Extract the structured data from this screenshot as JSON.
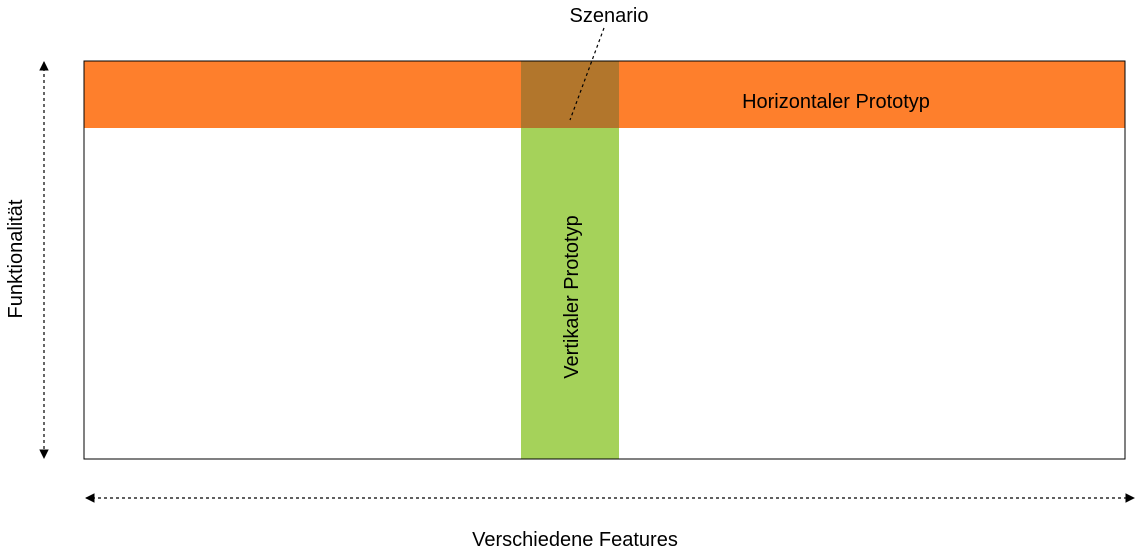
{
  "labels": {
    "scenario": "Szenario",
    "horizontal_prototype": "Horizontaler Prototyp",
    "vertical_prototype": "Vertikaler Prototyp",
    "y_axis": "Funktionalität",
    "x_axis": "Verschiedene Features"
  },
  "colors": {
    "horizontal_band": "#fe7f2c",
    "vertical_band": "#a5d25a",
    "intersection": "#b2762c",
    "frame": "#000000",
    "background": "#ffffff"
  }
}
